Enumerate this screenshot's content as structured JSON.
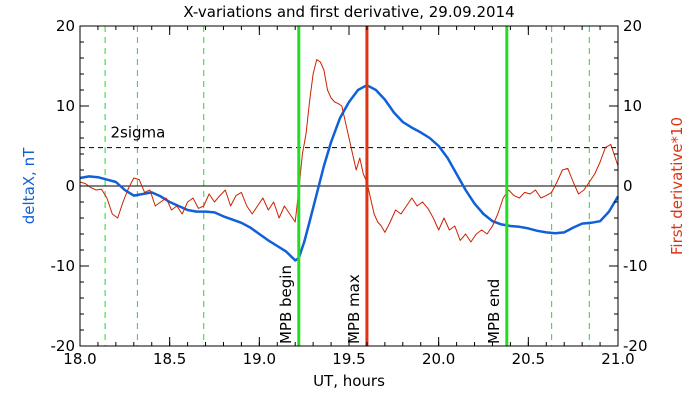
{
  "chart_data": {
    "type": "line",
    "title": "X-variations and first derivative, 29.09.2014",
    "xlabel": "UT, hours",
    "ylabel": "deltaX, nT",
    "y2label": "First derivative*10",
    "xlim": [
      18.0,
      21.0
    ],
    "ylim": [
      -20,
      20
    ],
    "y2lim": [
      -20,
      20
    ],
    "xticks": [
      "18.0",
      "18.5",
      "19.0",
      "19.5",
      "20.0",
      "20.5",
      "21.0"
    ],
    "yticks": [
      "-20",
      "-10",
      "0",
      "10",
      "20"
    ],
    "y2ticks": [
      "-20",
      "-10",
      "0",
      "10",
      "20"
    ],
    "grid": false,
    "colors": {
      "deltaX": "#1060d8",
      "derivative": "#cc2200",
      "mpb_edge": "#22dd22",
      "mpb_max": "#dd3311",
      "ylabel": "#1060d8",
      "y2label": "#dd3311"
    },
    "series": [
      {
        "key": "deltaX",
        "axis": "left",
        "x": [
          18.0,
          18.05,
          18.1,
          18.15,
          18.2,
          18.25,
          18.3,
          18.35,
          18.4,
          18.45,
          18.5,
          18.55,
          18.6,
          18.65,
          18.7,
          18.75,
          18.8,
          18.85,
          18.9,
          18.95,
          19.0,
          19.05,
          19.1,
          19.15,
          19.2,
          19.22,
          19.25,
          19.28,
          19.32,
          19.36,
          19.4,
          19.45,
          19.5,
          19.55,
          19.6,
          19.65,
          19.7,
          19.75,
          19.8,
          19.85,
          19.9,
          19.95,
          20.0,
          20.05,
          20.1,
          20.15,
          20.2,
          20.25,
          20.3,
          20.35,
          20.4,
          20.45,
          20.5,
          20.55,
          20.6,
          20.65,
          20.7,
          20.75,
          20.8,
          20.85,
          20.9,
          20.95,
          21.0
        ],
        "values": [
          1.0,
          1.2,
          1.1,
          0.8,
          0.5,
          -0.5,
          -1.2,
          -1.0,
          -0.8,
          -1.3,
          -2.0,
          -2.5,
          -3.0,
          -3.2,
          -3.2,
          -3.3,
          -3.8,
          -4.2,
          -4.6,
          -5.2,
          -6.0,
          -6.8,
          -7.5,
          -8.2,
          -9.3,
          -9.0,
          -7.0,
          -4.5,
          -1.0,
          2.5,
          5.5,
          8.5,
          10.5,
          12.0,
          12.6,
          12.0,
          10.8,
          9.2,
          8.0,
          7.3,
          6.7,
          6.0,
          5.0,
          3.5,
          1.5,
          -0.5,
          -2.2,
          -3.5,
          -4.4,
          -4.8,
          -5.0,
          -5.1,
          -5.3,
          -5.6,
          -5.8,
          -5.9,
          -5.8,
          -5.2,
          -4.7,
          -4.6,
          -4.4,
          -3.2,
          -1.3
        ]
      },
      {
        "key": "derivative",
        "axis": "right",
        "x": [
          18.0,
          18.03,
          18.06,
          18.09,
          18.12,
          18.15,
          18.18,
          18.21,
          18.24,
          18.27,
          18.3,
          18.33,
          18.36,
          18.39,
          18.42,
          18.45,
          18.48,
          18.51,
          18.54,
          18.57,
          18.6,
          18.63,
          18.66,
          18.69,
          18.72,
          18.75,
          18.78,
          18.81,
          18.84,
          18.87,
          18.9,
          18.93,
          18.96,
          18.99,
          19.02,
          19.05,
          19.08,
          19.11,
          19.14,
          19.17,
          19.2,
          19.22,
          19.24,
          19.26,
          19.28,
          19.3,
          19.32,
          19.34,
          19.36,
          19.38,
          19.4,
          19.42,
          19.44,
          19.46,
          19.48,
          19.5,
          19.52,
          19.54,
          19.56,
          19.58,
          19.6,
          19.62,
          19.64,
          19.66,
          19.68,
          19.7,
          19.73,
          19.76,
          19.79,
          19.82,
          19.85,
          19.88,
          19.91,
          19.94,
          19.97,
          20.0,
          20.03,
          20.06,
          20.09,
          20.12,
          20.15,
          20.18,
          20.21,
          20.24,
          20.27,
          20.3,
          20.33,
          20.36,
          20.39,
          20.42,
          20.45,
          20.48,
          20.51,
          20.54,
          20.57,
          20.6,
          20.63,
          20.66,
          20.69,
          20.72,
          20.75,
          20.78,
          20.81,
          20.84,
          20.87,
          20.9,
          20.93,
          20.96,
          21.0
        ],
        "values": [
          0.5,
          0.3,
          -0.2,
          -0.5,
          -0.4,
          -1.5,
          -3.5,
          -4.0,
          -2.0,
          -0.3,
          1.0,
          0.8,
          -0.8,
          -0.5,
          -2.5,
          -2.0,
          -1.5,
          -3.0,
          -2.5,
          -3.5,
          -2.0,
          -1.5,
          -2.8,
          -2.5,
          -1.0,
          -2.0,
          -1.2,
          -0.5,
          -2.5,
          -1.2,
          -0.8,
          -2.5,
          -3.5,
          -2.5,
          -1.5,
          -3.0,
          -2.0,
          -4.0,
          -2.5,
          -3.5,
          -4.5,
          -0.5,
          4.0,
          6.5,
          10.5,
          14.0,
          15.8,
          15.5,
          14.5,
          12.0,
          11.0,
          10.5,
          10.3,
          10.0,
          8.0,
          6.0,
          4.0,
          2.0,
          3.5,
          1.5,
          0.5,
          -1.5,
          -3.5,
          -4.5,
          -5.0,
          -5.8,
          -4.5,
          -3.0,
          -3.5,
          -2.5,
          -1.5,
          -2.5,
          -2.0,
          -2.8,
          -4.0,
          -5.5,
          -4.0,
          -5.5,
          -5.0,
          -6.8,
          -6.0,
          -7.0,
          -6.0,
          -5.5,
          -6.0,
          -5.0,
          -3.5,
          -1.5,
          -0.5,
          -1.2,
          -1.5,
          -0.8,
          -1.0,
          -0.5,
          -1.5,
          -1.2,
          -0.8,
          0.5,
          2.0,
          2.2,
          0.5,
          -1.0,
          -0.5,
          0.5,
          1.5,
          3.0,
          4.8,
          5.2,
          2.5
        ]
      }
    ],
    "threshold": {
      "label": "2sigma",
      "value": 4.8,
      "style": "dashed"
    },
    "zero_line": 0,
    "minor_markers": [
      18.14,
      18.32,
      18.69,
      20.63,
      20.84
    ],
    "markers": [
      {
        "label": "MPB begin",
        "x": 19.22
      },
      {
        "label": "MPB max",
        "x": 19.6
      },
      {
        "label": "MPB end",
        "x": 20.38
      }
    ]
  }
}
